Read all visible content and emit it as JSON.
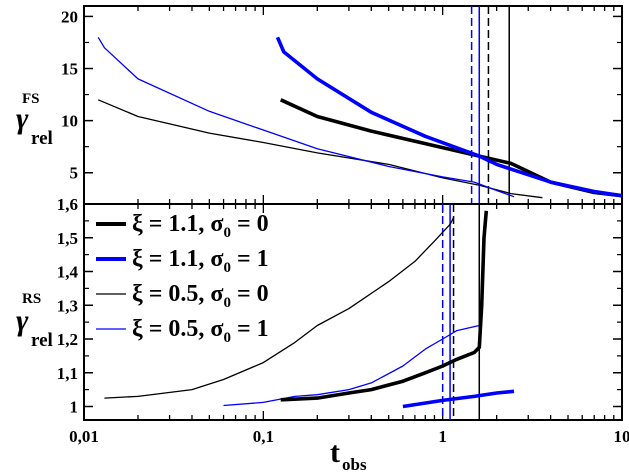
{
  "chart_data": [
    {
      "type": "line",
      "panel": "top",
      "ylabel": "γ",
      "ylabel_sub": "rel",
      "ylabel_sup": "FS",
      "xscale": "log",
      "xlim": [
        0.01,
        10
      ],
      "ylim": [
        2,
        21
      ],
      "yticks": [
        5,
        10,
        15,
        20
      ],
      "ytick_labels": [
        "5",
        "10",
        "15",
        "20"
      ],
      "series": [
        {
          "style": "black-thin",
          "color": "#000000",
          "x": [
            0.012,
            0.02,
            0.05,
            0.1,
            0.2,
            0.5,
            1.0,
            1.6,
            2.4,
            3.6
          ],
          "y": [
            12.0,
            10.4,
            8.8,
            7.9,
            6.9,
            5.8,
            4.5,
            3.8,
            3.0,
            2.6
          ]
        },
        {
          "style": "blue-thin",
          "color": "#0000ff",
          "x": [
            0.012,
            0.013,
            0.02,
            0.05,
            0.1,
            0.2,
            0.5,
            1.0,
            1.5,
            2.0,
            2.5
          ],
          "y": [
            18.0,
            17.0,
            14.0,
            10.9,
            9.1,
            7.3,
            5.6,
            4.6,
            4.1,
            3.3,
            2.7
          ]
        },
        {
          "style": "black-thick",
          "color": "#000000",
          "x": [
            0.125,
            0.2,
            0.4,
            0.8,
            1.6,
            2.4,
            4.0,
            7.0,
            10.0
          ],
          "y": [
            12.0,
            10.4,
            9.0,
            7.8,
            6.6,
            5.9,
            4.1,
            3.1,
            2.8
          ]
        },
        {
          "style": "blue-thick",
          "color": "#0000ff",
          "x": [
            0.12,
            0.13,
            0.2,
            0.4,
            0.8,
            1.6,
            2.0,
            4.0,
            7.0,
            10.0
          ],
          "y": [
            18.0,
            16.6,
            14.0,
            10.8,
            8.5,
            6.6,
            5.8,
            4.1,
            3.2,
            2.8
          ]
        }
      ],
      "vlines": [
        {
          "x": 1.45,
          "color": "#0000ff",
          "dash": true
        },
        {
          "x": 1.6,
          "color": "#0000ff",
          "dash": false
        },
        {
          "x": 1.8,
          "color": "#000000",
          "dash": true
        },
        {
          "x": 2.35,
          "color": "#000000",
          "dash": false
        }
      ]
    },
    {
      "type": "line",
      "panel": "bottom",
      "ylabel": "γ",
      "ylabel_sub": "rel",
      "ylabel_sup": "RS",
      "xlabel": "t",
      "xlabel_sub": "obs",
      "xscale": "log",
      "xlim": [
        0.01,
        10
      ],
      "xticks": [
        0.01,
        0.1,
        1,
        10
      ],
      "xtick_labels": [
        "0,01",
        "0,1",
        "1",
        "10"
      ],
      "ylim": [
        0.96,
        1.6
      ],
      "yticks": [
        1.0,
        1.1,
        1.2,
        1.3,
        1.4,
        1.5,
        1.6
      ],
      "ytick_labels": [
        "1",
        "1,1",
        "1,2",
        "1,3",
        "1,4",
        "1,5",
        "1,6"
      ],
      "legend": {
        "placement": "top-left",
        "entries": [
          {
            "label": "ξ = 1.1, σ",
            "sub": "0",
            "tail": " = 0",
            "color": "#000000",
            "width": 4
          },
          {
            "label": "ξ = 1.1, σ",
            "sub": "0",
            "tail": " = 1",
            "color": "#0000ff",
            "width": 4
          },
          {
            "label": "ξ = 0.5, σ",
            "sub": "0",
            "tail": " = 0",
            "color": "#000000",
            "width": 1.3
          },
          {
            "label": "ξ = 0.5, σ",
            "sub": "0",
            "tail": " = 1",
            "color": "#0000ff",
            "width": 1.3
          }
        ]
      },
      "series": [
        {
          "style": "black-thin",
          "color": "#000000",
          "x": [
            0.013,
            0.02,
            0.04,
            0.06,
            0.1,
            0.15,
            0.2,
            0.3,
            0.5,
            0.7,
            0.9,
            1.1,
            1.15
          ],
          "y": [
            1.025,
            1.03,
            1.05,
            1.08,
            1.13,
            1.19,
            1.24,
            1.29,
            1.37,
            1.43,
            1.49,
            1.54,
            1.56
          ]
        },
        {
          "style": "blue-thin",
          "color": "#0000ff",
          "x": [
            0.06,
            0.1,
            0.15,
            0.2,
            0.3,
            0.4,
            0.6,
            0.8,
            1.0,
            1.2,
            1.6
          ],
          "y": [
            1.003,
            1.012,
            1.03,
            1.035,
            1.05,
            1.07,
            1.12,
            1.17,
            1.2,
            1.225,
            1.24
          ]
        },
        {
          "style": "black-thick",
          "color": "#000000",
          "x": [
            0.125,
            0.2,
            0.3,
            0.4,
            0.6,
            0.8,
            1.0,
            1.2,
            1.5,
            1.6,
            1.65,
            1.7,
            1.75
          ],
          "y": [
            1.02,
            1.025,
            1.04,
            1.05,
            1.075,
            1.1,
            1.12,
            1.14,
            1.16,
            1.175,
            1.3,
            1.5,
            1.58
          ]
        },
        {
          "style": "blue-thick",
          "color": "#0000ff",
          "x": [
            0.6,
            1.0,
            1.5,
            2.0,
            2.5
          ],
          "y": [
            1.0,
            1.018,
            1.03,
            1.04,
            1.045
          ]
        }
      ],
      "vlines": [
        {
          "x": 1.0,
          "color": "#0000ff",
          "dash": true
        },
        {
          "x": 1.1,
          "color": "#0000ff",
          "dash": false
        },
        {
          "x": 1.15,
          "color": "#000000",
          "dash": true
        },
        {
          "x": 1.6,
          "color": "#000000",
          "dash": false
        }
      ]
    }
  ]
}
